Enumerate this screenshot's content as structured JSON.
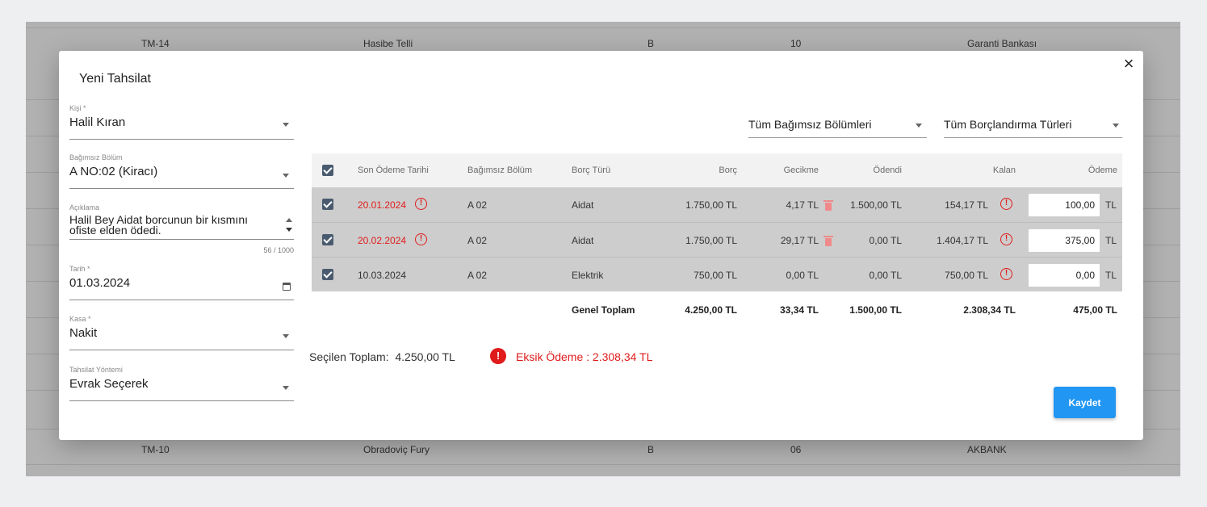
{
  "background_rows": {
    "top": {
      "code": "TM-14",
      "name": "Hasibe Telli",
      "block": "B",
      "no": "10",
      "bank": "Garanti Bankası"
    },
    "bottom": {
      "code": "TM-10",
      "name": "Obradoviç Fury",
      "block": "B",
      "no": "06",
      "bank": "AKBANK"
    }
  },
  "modal": {
    "title": "Yeni Tahsilat",
    "close_icon": "×",
    "fields": {
      "kisi": {
        "label": "Kişi *",
        "value": "Halil Kıran"
      },
      "bagimsiz_bolum": {
        "label": "Bağımsız Bölüm",
        "value": "A NO:02 (Kiracı)"
      },
      "aciklama": {
        "label": "Açıklama",
        "line1": "Halil Bey Aidat borcunun bir kısmını",
        "line2": "ofiste elden ödedi.",
        "counter": "56 / 1000"
      },
      "tarih": {
        "label": "Tarih *",
        "value": "01.03.2024"
      },
      "kasa": {
        "label": "Kasa *",
        "value": "Nakit"
      },
      "tahsilat_yontemi": {
        "label": "Tahsilat Yöntemi",
        "value": "Evrak Seçerek"
      }
    },
    "filters": {
      "bolumler": "Tüm Bağımsız Bölümleri",
      "borc_turleri": "Tüm Borçlandırma Türleri"
    },
    "table": {
      "headers": {
        "son_odeme": "Son Ödeme Tarihi",
        "bolum": "Bağımsız Bölüm",
        "borc_turu": "Borç Türü",
        "borc": "Borç",
        "gecikme": "Gecikme",
        "odendi": "Ödendi",
        "kalan": "Kalan",
        "odeme": "Ödeme"
      },
      "rows": [
        {
          "date": "20.01.2024",
          "bolum": "A 02",
          "tur": "Aidat",
          "borc": "1.750,00 TL",
          "gecikme": "4,17 TL",
          "odendi": "1.500,00 TL",
          "kalan": "154,17 TL",
          "odeme": "100,00",
          "unit": "TL"
        },
        {
          "date": "20.02.2024",
          "bolum": "A 02",
          "tur": "Aidat",
          "borc": "1.750,00 TL",
          "gecikme": "29,17 TL",
          "odendi": "0,00 TL",
          "kalan": "1.404,17 TL",
          "odeme": "375,00",
          "unit": "TL"
        },
        {
          "date": "10.03.2024",
          "bolum": "A 02",
          "tur": "Elektrik",
          "borc": "750,00 TL",
          "gecikme": "0,00 TL",
          "odendi": "0,00 TL",
          "kalan": "750,00 TL",
          "odeme": "0,00",
          "unit": "TL"
        }
      ],
      "totals": {
        "label": "Genel Toplam",
        "borc": "4.250,00 TL",
        "gecikme": "33,34 TL",
        "odendi": "1.500,00 TL",
        "kalan": "2.308,34 TL",
        "odeme": "475,00 TL"
      }
    },
    "summary": {
      "selected": "Seçilen Toplam:  4.250,00 TL",
      "warning": "Eksik Ödeme : 2.308,34 TL",
      "warning_icon": "!",
      "alert_icon": "!"
    },
    "save_label": "Kaydet"
  },
  "colors": {
    "accent": "#2196f3",
    "danger": "#e01b1b",
    "checkbox": "#4a5b70"
  }
}
